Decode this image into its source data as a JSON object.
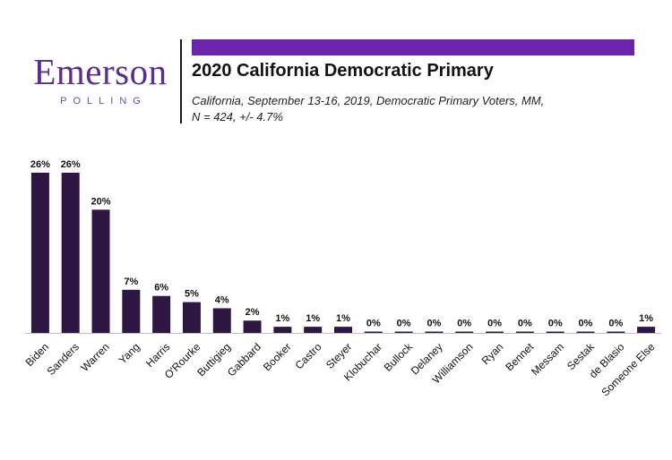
{
  "logo": {
    "word": "Emerson",
    "sub": "POLLING"
  },
  "title": "2020 California Democratic Primary",
  "subtitle_line1": "California, September 13-16, 2019, Democratic Primary Voters, MM,",
  "subtitle_line2": "N = 424, +/- 4.7%",
  "colors": {
    "bar": "#2e1742",
    "accent": "#6a25a8",
    "brand": "#5a2d91"
  },
  "chart_data": {
    "type": "bar",
    "categories": [
      "Biden",
      "Sanders",
      "Warren",
      "Yang",
      "Harris",
      "O'Rourke",
      "Buttigieg",
      "Gabbard",
      "Booker",
      "Castro",
      "Steyer",
      "Klobuchar",
      "Bullock",
      "Delaney",
      "Williamson",
      "Ryan",
      "Bennet",
      "Messam",
      "Sestak",
      "de Blasio",
      "Someone Else"
    ],
    "values": [
      26,
      26,
      20,
      7,
      6,
      5,
      4,
      2,
      1,
      1,
      1,
      0,
      0,
      0,
      0,
      0,
      0,
      0,
      0,
      0,
      1
    ],
    "labels": [
      "26%",
      "26%",
      "20%",
      "7%",
      "6%",
      "5%",
      "4%",
      "2%",
      "1%",
      "1%",
      "1%",
      "0%",
      "0%",
      "0%",
      "0%",
      "0%",
      "0%",
      "0%",
      "0%",
      "0%",
      "1%"
    ],
    "unit": "%",
    "ylim": [
      0,
      26
    ],
    "grid": false,
    "legend": "none"
  }
}
